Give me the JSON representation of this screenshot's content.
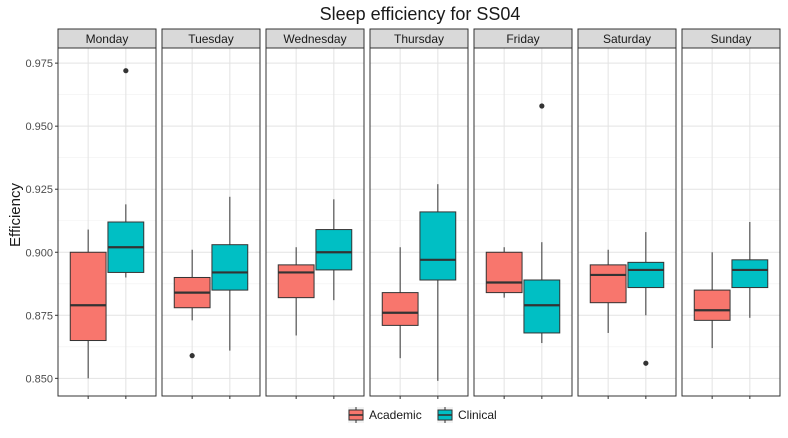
{
  "chart_data": {
    "type": "boxplot",
    "title": "Sleep efficiency for SS04",
    "xlabel": "",
    "ylabel": "Efficiency",
    "ylim": [
      0.843,
      0.981
    ],
    "yticks": [
      0.85,
      0.875,
      0.9,
      0.925,
      0.95,
      0.975
    ],
    "ytick_labels": [
      "0.850",
      "0.875",
      "0.900",
      "0.925",
      "0.950",
      "0.975"
    ],
    "grid": true,
    "legend_position": "bottom",
    "facets": [
      "Monday",
      "Tuesday",
      "Wednesday",
      "Thursday",
      "Friday",
      "Saturday",
      "Sunday"
    ],
    "groups": [
      {
        "name": "Academic",
        "color": "#F8766D"
      },
      {
        "name": "Clinical",
        "color": "#00BFC4"
      }
    ],
    "boxes": [
      {
        "facet": "Monday",
        "group": "Academic",
        "min": 0.85,
        "q1": 0.865,
        "median": 0.879,
        "q3": 0.9,
        "max": 0.909,
        "outliers": []
      },
      {
        "facet": "Monday",
        "group": "Clinical",
        "min": 0.89,
        "q1": 0.892,
        "median": 0.902,
        "q3": 0.912,
        "max": 0.919,
        "outliers": [
          0.972
        ]
      },
      {
        "facet": "Tuesday",
        "group": "Academic",
        "min": 0.873,
        "q1": 0.878,
        "median": 0.884,
        "q3": 0.89,
        "max": 0.901,
        "outliers": [
          0.859
        ]
      },
      {
        "facet": "Tuesday",
        "group": "Clinical",
        "min": 0.861,
        "q1": 0.885,
        "median": 0.892,
        "q3": 0.903,
        "max": 0.922,
        "outliers": []
      },
      {
        "facet": "Wednesday",
        "group": "Academic",
        "min": 0.867,
        "q1": 0.882,
        "median": 0.892,
        "q3": 0.895,
        "max": 0.902,
        "outliers": []
      },
      {
        "facet": "Wednesday",
        "group": "Clinical",
        "min": 0.881,
        "q1": 0.893,
        "median": 0.9,
        "q3": 0.909,
        "max": 0.921,
        "outliers": []
      },
      {
        "facet": "Thursday",
        "group": "Academic",
        "min": 0.858,
        "q1": 0.871,
        "median": 0.876,
        "q3": 0.884,
        "max": 0.902,
        "outliers": []
      },
      {
        "facet": "Thursday",
        "group": "Clinical",
        "min": 0.849,
        "q1": 0.889,
        "median": 0.897,
        "q3": 0.916,
        "max": 0.927,
        "outliers": []
      },
      {
        "facet": "Friday",
        "group": "Academic",
        "min": 0.882,
        "q1": 0.884,
        "median": 0.888,
        "q3": 0.9,
        "max": 0.902,
        "outliers": []
      },
      {
        "facet": "Friday",
        "group": "Clinical",
        "min": 0.864,
        "q1": 0.868,
        "median": 0.879,
        "q3": 0.889,
        "max": 0.904,
        "outliers": [
          0.958
        ]
      },
      {
        "facet": "Saturday",
        "group": "Academic",
        "min": 0.868,
        "q1": 0.88,
        "median": 0.891,
        "q3": 0.895,
        "max": 0.901,
        "outliers": []
      },
      {
        "facet": "Saturday",
        "group": "Clinical",
        "min": 0.875,
        "q1": 0.886,
        "median": 0.893,
        "q3": 0.896,
        "max": 0.908,
        "outliers": [
          0.856
        ]
      },
      {
        "facet": "Sunday",
        "group": "Academic",
        "min": 0.862,
        "q1": 0.873,
        "median": 0.877,
        "q3": 0.885,
        "max": 0.9,
        "outliers": []
      },
      {
        "facet": "Sunday",
        "group": "Clinical",
        "min": 0.874,
        "q1": 0.886,
        "median": 0.893,
        "q3": 0.897,
        "max": 0.912,
        "outliers": []
      }
    ]
  }
}
